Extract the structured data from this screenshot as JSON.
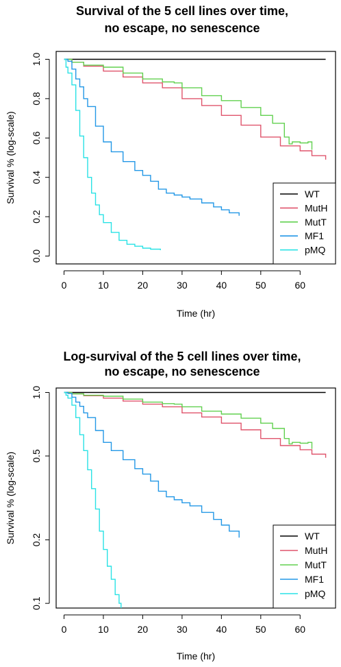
{
  "chart_data": [
    {
      "type": "line",
      "title_lines": [
        "Survival of the 5 cell lines over time,",
        "no escape, no senescence"
      ],
      "xlabel": "Time (hr)",
      "ylabel": "Survival % (log-scale)",
      "xlim": [
        -2,
        69
      ],
      "ylim": [
        -0.04,
        1.04
      ],
      "x_ticks": [
        0,
        10,
        20,
        30,
        40,
        50,
        60
      ],
      "y_ticks": [
        0.0,
        0.2,
        0.4,
        0.6,
        0.8,
        1.0
      ],
      "y_tick_labels": [
        "0.0",
        "0.2",
        "0.4",
        "0.6",
        "0.8",
        "1.0"
      ],
      "log_y": false,
      "grid": false,
      "legend_position": "bottom-right",
      "series": [
        {
          "name": "WT",
          "color": "#000000",
          "points": [
            [
              0,
              1.0
            ],
            [
              66.5,
              1.0
            ]
          ]
        },
        {
          "name": "MutH",
          "color": "#DF536B",
          "points": [
            [
              0,
              1.0
            ],
            [
              2,
              0.985
            ],
            [
              5,
              0.965
            ],
            [
              10,
              0.94
            ],
            [
              15,
              0.91
            ],
            [
              20,
              0.88
            ],
            [
              25,
              0.855
            ],
            [
              30,
              0.8
            ],
            [
              35,
              0.765
            ],
            [
              40,
              0.715
            ],
            [
              45,
              0.665
            ],
            [
              50,
              0.605
            ],
            [
              55,
              0.56
            ],
            [
              60,
              0.535
            ],
            [
              63,
              0.51
            ],
            [
              66.5,
              0.49
            ]
          ]
        },
        {
          "name": "MutT",
          "color": "#61D04F",
          "points": [
            [
              0,
              1.0
            ],
            [
              2,
              0.985
            ],
            [
              5,
              0.97
            ],
            [
              10,
              0.96
            ],
            [
              15,
              0.93
            ],
            [
              20,
              0.9
            ],
            [
              25,
              0.885
            ],
            [
              28,
              0.88
            ],
            [
              30,
              0.855
            ],
            [
              35,
              0.815
            ],
            [
              40,
              0.79
            ],
            [
              45,
              0.755
            ],
            [
              50,
              0.715
            ],
            [
              53,
              0.675
            ],
            [
              56,
              0.605
            ],
            [
              57.2,
              0.57
            ],
            [
              58,
              0.58
            ],
            [
              60,
              0.575
            ],
            [
              62,
              0.58
            ],
            [
              63,
              0.54
            ]
          ]
        },
        {
          "name": "MF1",
          "color": "#2297E6",
          "points": [
            [
              0,
              1.0
            ],
            [
              1,
              0.99
            ],
            [
              2,
              0.95
            ],
            [
              3,
              0.9
            ],
            [
              4,
              0.86
            ],
            [
              5,
              0.8
            ],
            [
              6,
              0.76
            ],
            [
              8,
              0.66
            ],
            [
              10,
              0.58
            ],
            [
              12,
              0.53
            ],
            [
              15,
              0.48
            ],
            [
              18,
              0.435
            ],
            [
              20,
              0.41
            ],
            [
              22,
              0.38
            ],
            [
              24,
              0.34
            ],
            [
              26,
              0.32
            ],
            [
              28,
              0.31
            ],
            [
              30,
              0.3
            ],
            [
              32,
              0.29
            ],
            [
              35,
              0.27
            ],
            [
              38,
              0.25
            ],
            [
              40,
              0.235
            ],
            [
              42,
              0.22
            ],
            [
              44.5,
              0.205
            ]
          ]
        },
        {
          "name": "pMQ",
          "color": "#28E2E5",
          "points": [
            [
              0,
              1.0
            ],
            [
              0.5,
              0.96
            ],
            [
              1,
              0.93
            ],
            [
              2,
              0.87
            ],
            [
              3,
              0.74
            ],
            [
              4,
              0.61
            ],
            [
              5,
              0.5
            ],
            [
              6,
              0.4
            ],
            [
              7,
              0.32
            ],
            [
              8,
              0.26
            ],
            [
              9,
              0.21
            ],
            [
              10,
              0.17
            ],
            [
              12,
              0.12
            ],
            [
              14,
              0.08
            ],
            [
              16,
              0.06
            ],
            [
              18,
              0.05
            ],
            [
              20,
              0.04
            ],
            [
              22,
              0.035
            ],
            [
              24.5,
              0.03
            ]
          ]
        }
      ]
    },
    {
      "type": "line",
      "title_lines": [
        "Log-survival of the 5 cell lines over time,",
        "no escape, no senescence"
      ],
      "xlabel": "Time (hr)",
      "ylabel": "Survival % (log-scale)",
      "xlim": [
        -2,
        69
      ],
      "ylim": [
        0.095,
        1.05
      ],
      "x_ticks": [
        0,
        10,
        20,
        30,
        40,
        50,
        60
      ],
      "y_ticks": [
        0.1,
        0.2,
        0.5,
        1.0
      ],
      "y_tick_labels": [
        "0.1",
        "0.2",
        "0.5",
        "1.0"
      ],
      "log_y": true,
      "grid": false,
      "legend_position": "bottom-right",
      "series": [
        {
          "name": "WT",
          "color": "#000000",
          "points": [
            [
              0,
              1.0
            ],
            [
              66.5,
              1.0
            ]
          ]
        },
        {
          "name": "MutH",
          "color": "#DF536B",
          "points": [
            [
              0,
              1.0
            ],
            [
              2,
              0.985
            ],
            [
              5,
              0.965
            ],
            [
              10,
              0.94
            ],
            [
              15,
              0.91
            ],
            [
              20,
              0.88
            ],
            [
              25,
              0.855
            ],
            [
              30,
              0.8
            ],
            [
              35,
              0.765
            ],
            [
              40,
              0.715
            ],
            [
              45,
              0.665
            ],
            [
              50,
              0.605
            ],
            [
              55,
              0.56
            ],
            [
              60,
              0.535
            ],
            [
              63,
              0.51
            ],
            [
              66.5,
              0.49
            ]
          ]
        },
        {
          "name": "MutT",
          "color": "#61D04F",
          "points": [
            [
              0,
              1.0
            ],
            [
              2,
              0.985
            ],
            [
              5,
              0.97
            ],
            [
              10,
              0.96
            ],
            [
              15,
              0.93
            ],
            [
              20,
              0.9
            ],
            [
              25,
              0.885
            ],
            [
              28,
              0.88
            ],
            [
              30,
              0.855
            ],
            [
              35,
              0.815
            ],
            [
              40,
              0.79
            ],
            [
              45,
              0.755
            ],
            [
              50,
              0.715
            ],
            [
              53,
              0.675
            ],
            [
              56,
              0.605
            ],
            [
              57.2,
              0.57
            ],
            [
              58,
              0.58
            ],
            [
              60,
              0.575
            ],
            [
              62,
              0.58
            ],
            [
              63,
              0.54
            ]
          ]
        },
        {
          "name": "MF1",
          "color": "#2297E6",
          "points": [
            [
              0,
              1.0
            ],
            [
              1,
              0.99
            ],
            [
              2,
              0.95
            ],
            [
              3,
              0.9
            ],
            [
              4,
              0.86
            ],
            [
              5,
              0.8
            ],
            [
              6,
              0.76
            ],
            [
              8,
              0.66
            ],
            [
              10,
              0.58
            ],
            [
              12,
              0.53
            ],
            [
              15,
              0.48
            ],
            [
              18,
              0.435
            ],
            [
              20,
              0.41
            ],
            [
              22,
              0.38
            ],
            [
              24,
              0.34
            ],
            [
              26,
              0.32
            ],
            [
              28,
              0.31
            ],
            [
              30,
              0.3
            ],
            [
              32,
              0.29
            ],
            [
              35,
              0.27
            ],
            [
              38,
              0.25
            ],
            [
              40,
              0.235
            ],
            [
              42,
              0.22
            ],
            [
              44.5,
              0.205
            ]
          ]
        },
        {
          "name": "pMQ",
          "color": "#28E2E5",
          "points": [
            [
              0,
              1.0
            ],
            [
              0.5,
              0.97
            ],
            [
              1,
              0.94
            ],
            [
              2,
              0.87
            ],
            [
              3,
              0.76
            ],
            [
              4,
              0.63
            ],
            [
              5,
              0.53
            ],
            [
              6,
              0.43
            ],
            [
              7,
              0.35
            ],
            [
              8,
              0.28
            ],
            [
              9,
              0.22
            ],
            [
              10,
              0.18
            ],
            [
              11,
              0.15
            ],
            [
              12,
              0.13
            ],
            [
              13,
              0.11
            ],
            [
              14,
              0.1
            ],
            [
              14.5,
              0.093
            ]
          ]
        }
      ]
    }
  ]
}
